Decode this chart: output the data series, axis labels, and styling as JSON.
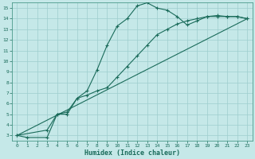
{
  "xlabel": "Humidex (Indice chaleur)",
  "bg_color": "#c5e8e8",
  "grid_color": "#9ecece",
  "line_color": "#1a6b5a",
  "spine_color": "#4a9a8a",
  "xlim": [
    -0.5,
    23.5
  ],
  "ylim": [
    2.5,
    15.5
  ],
  "xticks": [
    0,
    1,
    2,
    3,
    4,
    5,
    6,
    7,
    8,
    9,
    10,
    11,
    12,
    13,
    14,
    15,
    16,
    17,
    18,
    19,
    20,
    21,
    22,
    23
  ],
  "yticks": [
    3,
    4,
    5,
    6,
    7,
    8,
    9,
    10,
    11,
    12,
    13,
    14,
    15
  ],
  "curve1_x": [
    0,
    1,
    3,
    4,
    5,
    6,
    7,
    8,
    9,
    10,
    11,
    12,
    13,
    14,
    15,
    16,
    17,
    18,
    19,
    20,
    21,
    22,
    23
  ],
  "curve1_y": [
    3.0,
    2.8,
    2.8,
    5.0,
    5.0,
    6.5,
    7.2,
    9.2,
    11.5,
    13.3,
    14.0,
    15.2,
    15.5,
    15.0,
    14.8,
    14.2,
    13.4,
    13.8,
    14.2,
    14.2,
    14.2,
    14.2,
    14.0
  ],
  "curve2_x": [
    0,
    3,
    4,
    5,
    6,
    7,
    8,
    9,
    10,
    11,
    12,
    13,
    14,
    15,
    16,
    17,
    18,
    19,
    20,
    21,
    22,
    23
  ],
  "curve2_y": [
    3.0,
    3.5,
    5.0,
    5.2,
    6.5,
    6.8,
    7.2,
    7.5,
    8.5,
    9.5,
    10.5,
    11.5,
    12.5,
    13.0,
    13.5,
    13.8,
    14.0,
    14.2,
    14.3,
    14.2,
    14.2,
    14.0
  ],
  "curve3_x": [
    0,
    23
  ],
  "curve3_y": [
    3.0,
    14.0
  ]
}
